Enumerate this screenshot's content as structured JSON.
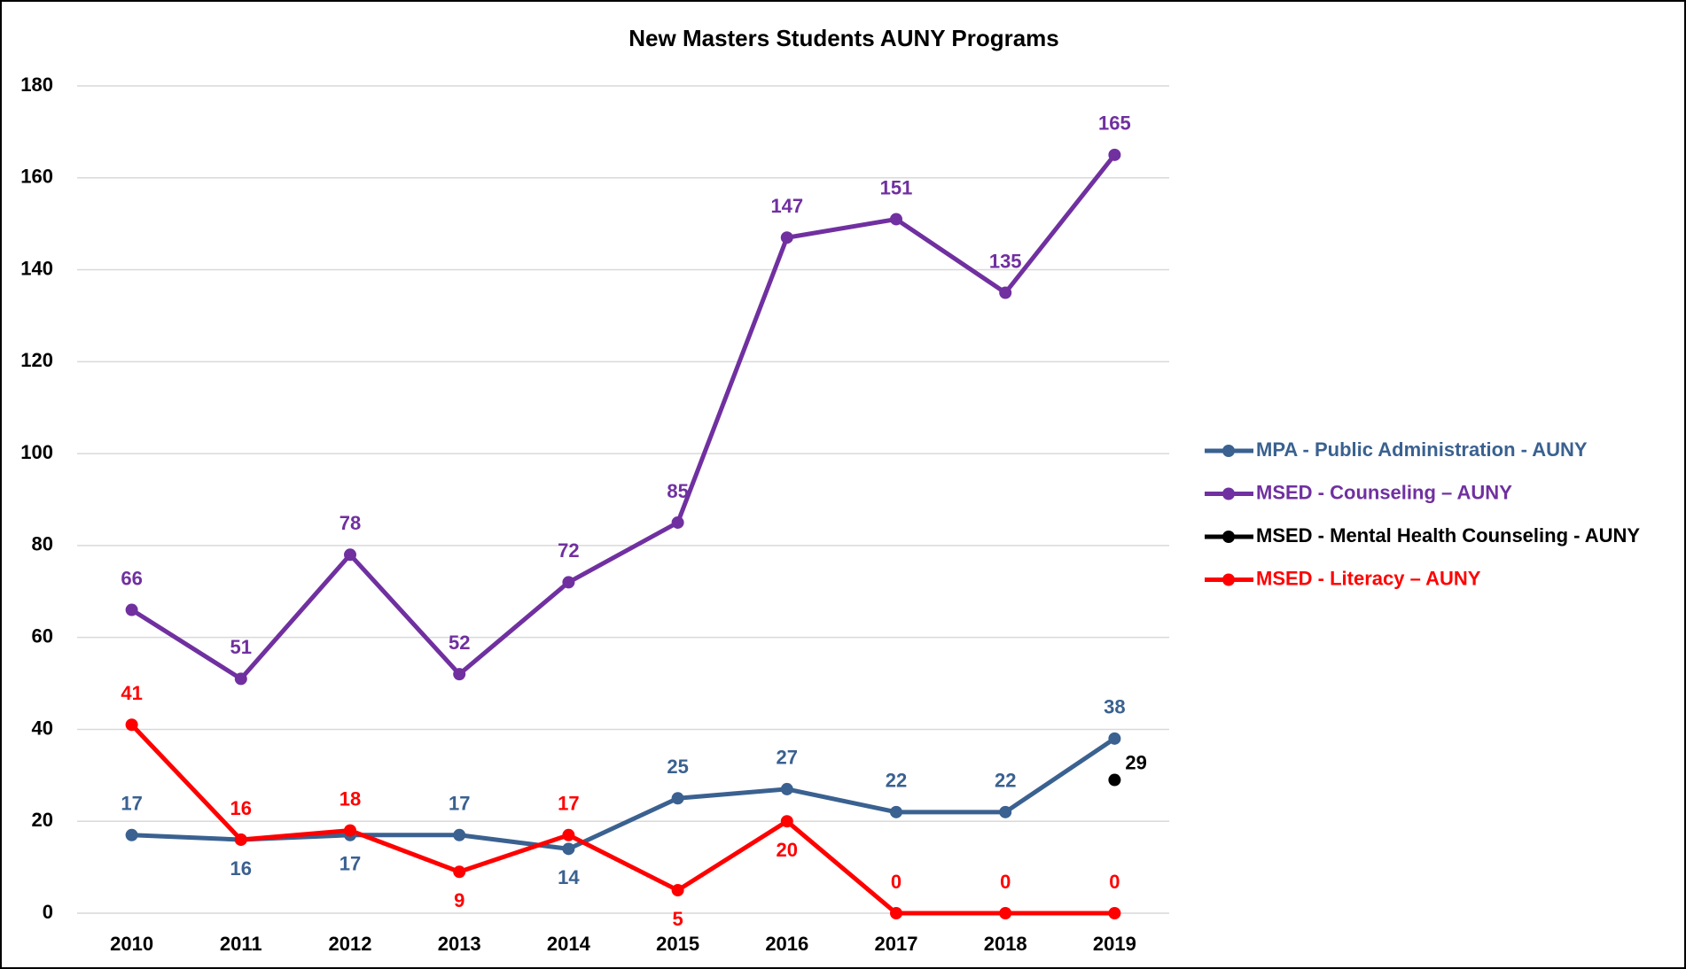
{
  "chart_data": {
    "type": "line",
    "title": "New Masters Students AUNY Programs",
    "categories": [
      "2010",
      "2011",
      "2012",
      "2013",
      "2014",
      "2015",
      "2016",
      "2017",
      "2018",
      "2019"
    ],
    "series": [
      {
        "name": "MPA - Public Administration - AUNY",
        "color": "#3a6190",
        "values": [
          17,
          16,
          17,
          17,
          14,
          25,
          27,
          22,
          22,
          38
        ]
      },
      {
        "name": "MSED - Counseling – AUNY",
        "color": "#7030a0",
        "values": [
          66,
          51,
          78,
          52,
          72,
          85,
          147,
          151,
          135,
          165
        ]
      },
      {
        "name": "MSED - Mental Health Counseling - AUNY",
        "color": "#000000",
        "values": [
          null,
          null,
          null,
          null,
          null,
          null,
          null,
          null,
          null,
          29
        ]
      },
      {
        "name": "MSED - Literacy – AUNY",
        "color": "#ff0000",
        "values": [
          41,
          16,
          18,
          9,
          17,
          5,
          20,
          0,
          0,
          0
        ]
      }
    ],
    "ylim": [
      0,
      180
    ],
    "yticks": [
      0,
      20,
      40,
      60,
      80,
      100,
      120,
      140,
      160,
      180
    ],
    "grid": true,
    "legend": "right"
  }
}
